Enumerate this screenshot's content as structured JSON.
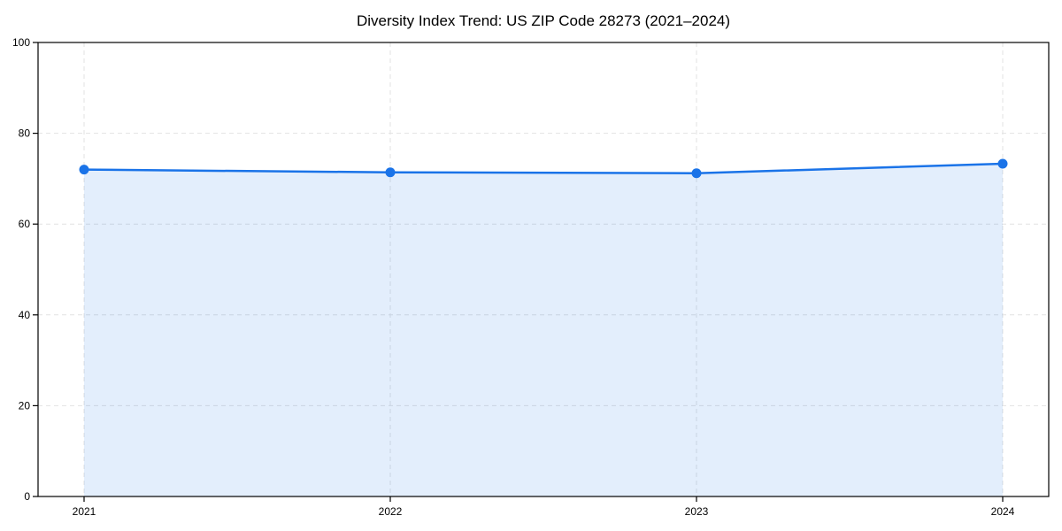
{
  "chart_data": {
    "type": "area",
    "title": "Diversity Index Trend: US ZIP Code 28273 (2021–2024)",
    "x": [
      2021,
      2022,
      2023,
      2024
    ],
    "xtick_labels": [
      "2021",
      "2022",
      "2023",
      "2024"
    ],
    "series": [
      {
        "name": "Diversity Index",
        "values": [
          72.0,
          71.4,
          71.2,
          73.3
        ]
      }
    ],
    "xlabel": "",
    "ylabel": "",
    "ylim": [
      0,
      100
    ],
    "yticks": [
      0,
      20,
      40,
      60,
      80,
      100
    ],
    "grid": true,
    "grid_style": "dashed",
    "legend_position": "none",
    "colors": {
      "line": "#1a73e8",
      "marker": "#1a73e8",
      "area_fill": "rgba(26,115,232,0.12)",
      "grid": "#e2e2e2",
      "axis": "#000000",
      "background": "#ffffff",
      "title_text": "#000000",
      "tick_text": "#000000"
    }
  }
}
